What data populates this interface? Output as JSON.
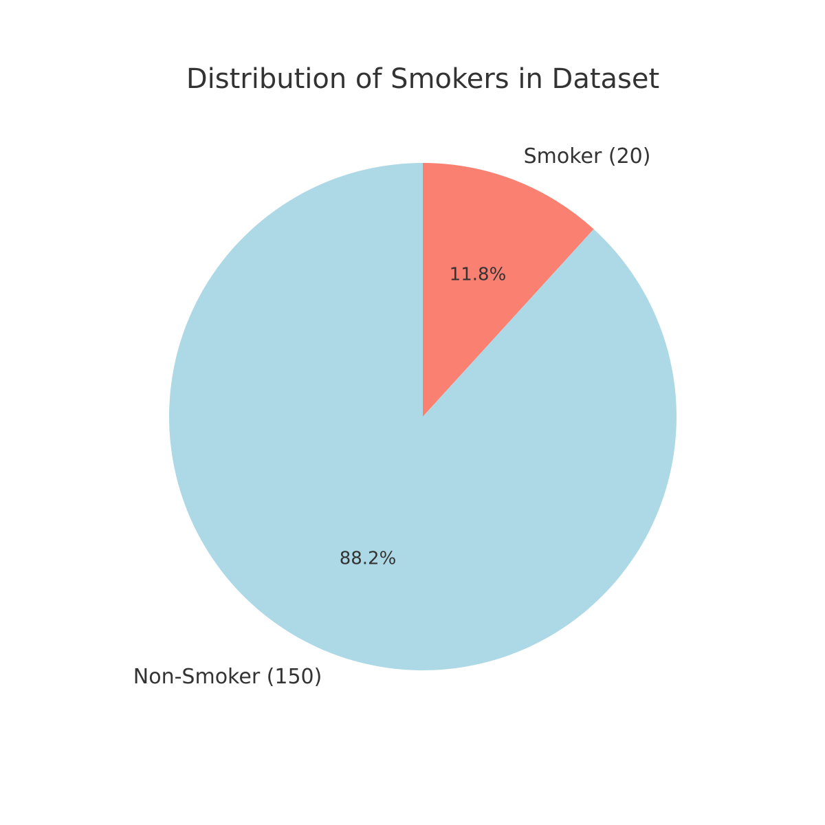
{
  "chart_data": {
    "type": "pie",
    "title": "Distribution of Smokers in Dataset",
    "start_angle_deg": 90,
    "direction": "clockwise",
    "slices": [
      {
        "label": "Smoker (20)",
        "value": 20,
        "percent_label": "11.8%",
        "color": "#FA8072"
      },
      {
        "label": "Non-Smoker (150)",
        "value": 150,
        "percent_label": "88.2%",
        "color": "#ADD8E6"
      }
    ]
  }
}
